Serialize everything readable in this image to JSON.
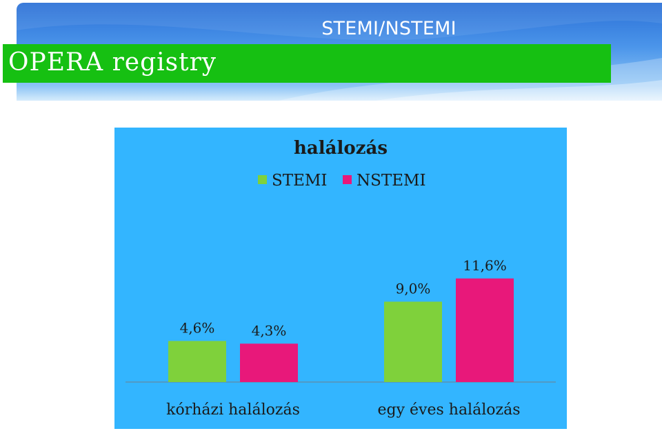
{
  "slide": {
    "title": "STEMI/NSTEMI",
    "app_name": "OPERA registry"
  },
  "colors": {
    "banner": "#3f86e2",
    "title_bar": "#16c012",
    "chart_background": "#33b5ff",
    "stemi": "#7fd13b",
    "nstemi": "#e8187a"
  },
  "chart_data": {
    "type": "bar",
    "title": "halálozás",
    "categories": [
      "kórházi halálozás",
      "egy éves halálozás"
    ],
    "series": [
      {
        "name": "STEMI",
        "values": [
          4.6,
          9.0
        ],
        "labels": [
          "4,6%",
          "9,0%"
        ]
      },
      {
        "name": "NSTEMI",
        "values": [
          4.3,
          11.6
        ],
        "labels": [
          "4,3%",
          "11,6%"
        ]
      }
    ],
    "ylim": [
      0,
      14
    ],
    "grid": false,
    "legend_position": "top"
  }
}
